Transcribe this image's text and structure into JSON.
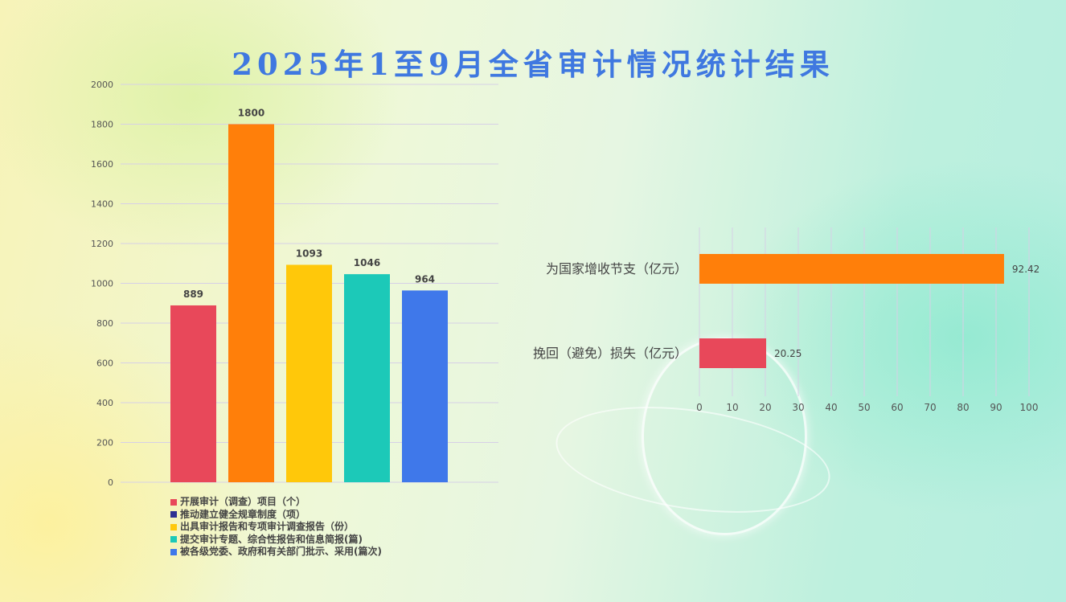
{
  "title": "2025年1至9月全省审计情况统计结果",
  "chart_data": [
    {
      "type": "bar",
      "title": "",
      "ylim": [
        0,
        2000
      ],
      "yticks": [
        0,
        200,
        400,
        600,
        800,
        1000,
        1200,
        1400,
        1600,
        1800,
        2000
      ],
      "values": [
        889,
        1800,
        1093,
        1046,
        964
      ],
      "colors": [
        "#e8485a",
        "#ff7f0a",
        "#ffc80a",
        "#1cc9b8",
        "#3f78ea"
      ],
      "legend": [
        {
          "label": "开展审计（调查）项目（个）",
          "color": "#e8485a"
        },
        {
          "label": "推动建立健全规章制度（项）",
          "color": "#2e3192"
        },
        {
          "label": "出具审计报告和专项审计调查报告（份）",
          "color": "#ffc80a"
        },
        {
          "label": "提交审计专题、综合性报告和信息简报(篇)",
          "color": "#1cc9b8"
        },
        {
          "label": "被各级党委、政府和有关部门批示、采用(篇次)",
          "color": "#3f78ea"
        }
      ],
      "legend_position": "bottom"
    },
    {
      "type": "bar",
      "orientation": "horizontal",
      "xlim": [
        0,
        100
      ],
      "xticks": [
        0,
        10,
        20,
        30,
        40,
        50,
        60,
        70,
        80,
        90,
        100
      ],
      "categories": [
        "为国家增收节支（亿元）",
        "挽回（避免）损失（亿元）"
      ],
      "values": [
        92.42,
        20.25
      ],
      "colors": [
        "#ff7f0a",
        "#e8485a"
      ]
    }
  ]
}
